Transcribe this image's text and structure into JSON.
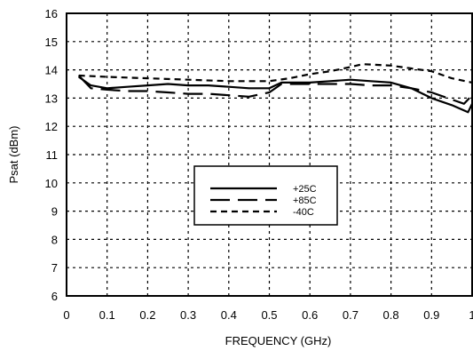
{
  "chart_data": {
    "type": "line",
    "title": "",
    "xlabel": "FREQUENCY (GHz)",
    "ylabel": "Psat (dBm)",
    "xlim": [
      0,
      1
    ],
    "ylim": [
      6,
      16
    ],
    "grid": true,
    "legend_position": "center-right",
    "x_ticks": [
      "0",
      "0.1",
      "0.2",
      "0.3",
      "0.4",
      "0.5",
      "0.6",
      "0.7",
      "0.8",
      "0.9",
      "1"
    ],
    "y_ticks": [
      "6",
      "7",
      "8",
      "9",
      "10",
      "11",
      "12",
      "13",
      "14",
      "15",
      "16"
    ],
    "series": [
      {
        "name": "+25C",
        "style": "solid",
        "points": [
          [
            0.03,
            13.75
          ],
          [
            0.06,
            13.45
          ],
          [
            0.1,
            13.35
          ],
          [
            0.15,
            13.4
          ],
          [
            0.2,
            13.45
          ],
          [
            0.25,
            13.5
          ],
          [
            0.3,
            13.45
          ],
          [
            0.35,
            13.45
          ],
          [
            0.4,
            13.4
          ],
          [
            0.45,
            13.35
          ],
          [
            0.5,
            13.35
          ],
          [
            0.53,
            13.55
          ],
          [
            0.6,
            13.55
          ],
          [
            0.65,
            13.6
          ],
          [
            0.7,
            13.65
          ],
          [
            0.75,
            13.6
          ],
          [
            0.8,
            13.55
          ],
          [
            0.85,
            13.35
          ],
          [
            0.9,
            13.0
          ],
          [
            0.95,
            12.75
          ],
          [
            0.99,
            12.5
          ],
          [
            1.0,
            12.8
          ]
        ]
      },
      {
        "name": "+85C",
        "style": "long-dash",
        "points": [
          [
            0.03,
            13.8
          ],
          [
            0.06,
            13.35
          ],
          [
            0.1,
            13.3
          ],
          [
            0.15,
            13.25
          ],
          [
            0.2,
            13.25
          ],
          [
            0.25,
            13.2
          ],
          [
            0.3,
            13.15
          ],
          [
            0.35,
            13.15
          ],
          [
            0.4,
            13.1
          ],
          [
            0.45,
            13.05
          ],
          [
            0.5,
            13.2
          ],
          [
            0.53,
            13.5
          ],
          [
            0.6,
            13.5
          ],
          [
            0.65,
            13.5
          ],
          [
            0.7,
            13.5
          ],
          [
            0.75,
            13.45
          ],
          [
            0.8,
            13.45
          ],
          [
            0.85,
            13.35
          ],
          [
            0.9,
            13.2
          ],
          [
            0.95,
            12.95
          ],
          [
            0.98,
            12.8
          ],
          [
            1.0,
            13.1
          ]
        ]
      },
      {
        "name": "-40C",
        "style": "short-dash",
        "points": [
          [
            0.03,
            13.8
          ],
          [
            0.1,
            13.75
          ],
          [
            0.2,
            13.7
          ],
          [
            0.3,
            13.65
          ],
          [
            0.4,
            13.6
          ],
          [
            0.5,
            13.6
          ],
          [
            0.55,
            13.7
          ],
          [
            0.6,
            13.85
          ],
          [
            0.65,
            13.95
          ],
          [
            0.7,
            14.1
          ],
          [
            0.73,
            14.2
          ],
          [
            0.8,
            14.15
          ],
          [
            0.85,
            14.05
          ],
          [
            0.9,
            13.95
          ],
          [
            0.95,
            13.7
          ],
          [
            1.0,
            13.55
          ]
        ]
      }
    ]
  },
  "colors": {
    "line": "#000000",
    "background": "#ffffff"
  }
}
